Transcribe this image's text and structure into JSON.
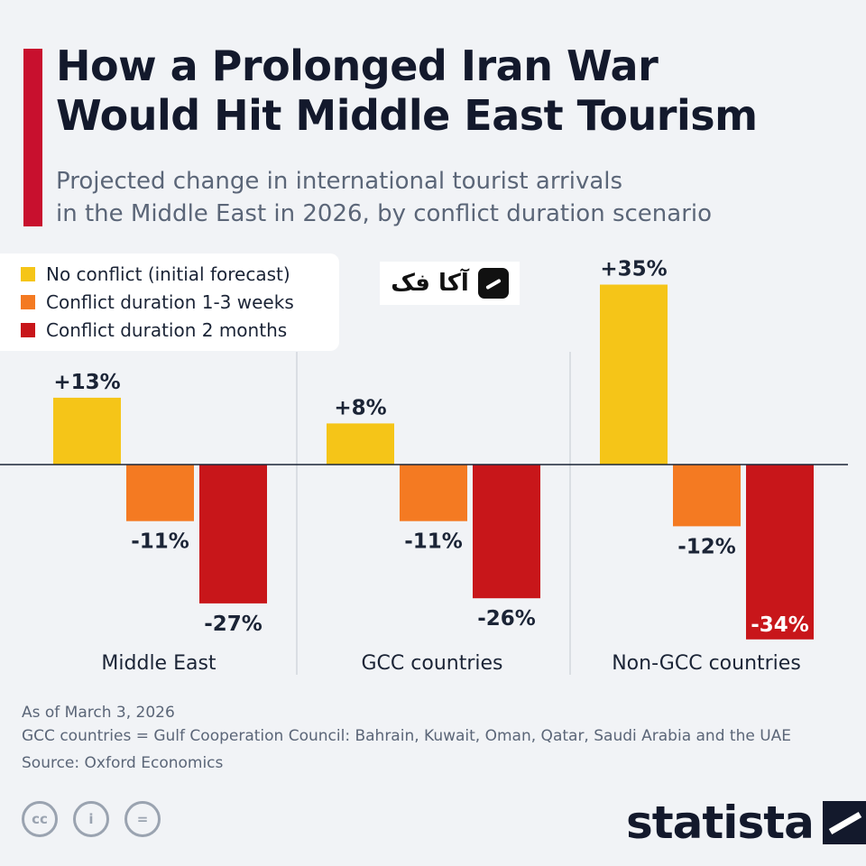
{
  "header": {
    "title_line1": "How a Prolonged Iran War",
    "title_line2": "Would Hit Middle East Tourism",
    "subtitle_line1": "Projected change in international tourist arrivals",
    "subtitle_line2": "in the Middle East in 2026, by conflict duration scenario"
  },
  "colors": {
    "accent": "#c8102e",
    "no_conflict": "#f5c518",
    "conflict_short": "#f47a22",
    "conflict_long": "#c8161a"
  },
  "watermark": {
    "text": "آکا فک",
    "icon": "watermark-logo-icon"
  },
  "chart_data": {
    "type": "bar",
    "title": "How a Prolonged Iran War Would Hit Middle East Tourism",
    "subtitle": "Projected change in international tourist arrivals in the Middle East in 2026, by conflict duration scenario",
    "categories": [
      "Middle East",
      "GCC countries",
      "Non-GCC countries"
    ],
    "series": [
      {
        "name": "No conflict (initial forecast)",
        "values": [
          13,
          8,
          35
        ],
        "labels": [
          "+13%",
          "+8%",
          "+35%"
        ],
        "color": "#f5c518"
      },
      {
        "name": "Conflict duration 1-3 weeks",
        "values": [
          -11,
          -11,
          -12
        ],
        "labels": [
          "-11%",
          "-11%",
          "-12%"
        ],
        "color": "#f47a22"
      },
      {
        "name": "Conflict duration 2 months",
        "values": [
          -27,
          -26,
          -34
        ],
        "labels": [
          "-27%",
          "-26%",
          "-34%"
        ],
        "color": "#c8161a"
      }
    ],
    "unit": "%",
    "ylim": [
      -34,
      35
    ],
    "grid": false,
    "legend_position": "top-left"
  },
  "footer": {
    "date_note": "As of March 3, 2026",
    "gcc_note": "GCC countries = Gulf Cooperation Council: Bahrain, Kuwait, Oman, Qatar, Saudi Arabia and the UAE",
    "source": "Source: Oxford Economics",
    "license_icons": [
      "cc-icon",
      "attribution-icon",
      "no-derivatives-icon"
    ],
    "license_glyphs": [
      "cc",
      "i",
      "="
    ],
    "brand": "statista",
    "brand_icon": "statista-logo-icon"
  }
}
